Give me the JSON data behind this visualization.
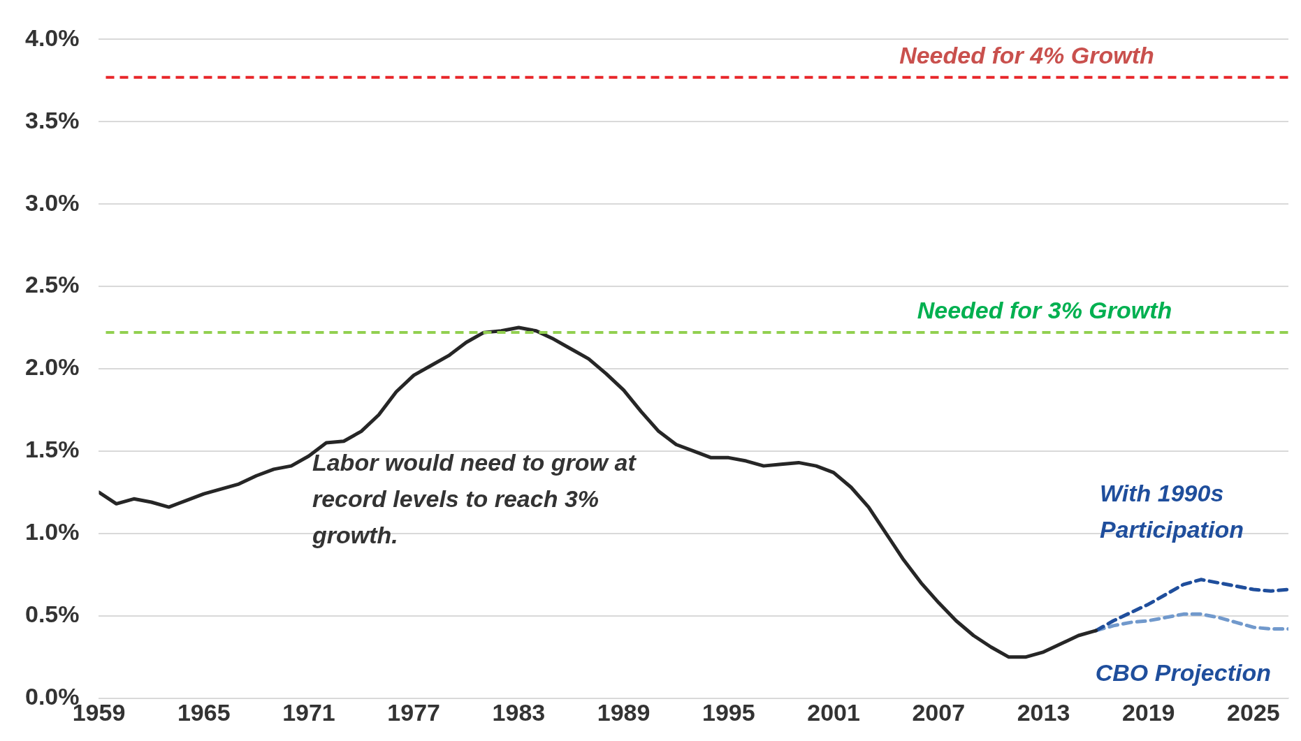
{
  "chart_data": {
    "type": "line",
    "x": [
      1959,
      1960,
      1961,
      1962,
      1963,
      1964,
      1965,
      1966,
      1967,
      1968,
      1969,
      1970,
      1971,
      1972,
      1973,
      1974,
      1975,
      1976,
      1977,
      1978,
      1979,
      1980,
      1981,
      1982,
      1983,
      1984,
      1985,
      1986,
      1987,
      1988,
      1989,
      1990,
      1991,
      1992,
      1993,
      1994,
      1995,
      1996,
      1997,
      1998,
      1999,
      2000,
      2001,
      2002,
      2003,
      2004,
      2005,
      2006,
      2007,
      2008,
      2009,
      2010,
      2011,
      2012,
      2013,
      2014,
      2015,
      2016
    ],
    "series": [
      {
        "color": "#262626",
        "line_style": "solid",
        "values": [
          1.25,
          1.18,
          1.21,
          1.19,
          1.16,
          1.2,
          1.24,
          1.27,
          1.3,
          1.35,
          1.39,
          1.41,
          1.47,
          1.55,
          1.56,
          1.62,
          1.72,
          1.86,
          1.96,
          2.02,
          2.08,
          2.16,
          2.22,
          2.23,
          2.25,
          2.23,
          2.18,
          2.12,
          2.06,
          1.97,
          1.87,
          1.74,
          1.62,
          1.54,
          1.5,
          1.46,
          1.46,
          1.44,
          1.41,
          1.42,
          1.43,
          1.41,
          1.37,
          1.28,
          1.16,
          1.0,
          0.84,
          0.7,
          0.58,
          0.47,
          0.38,
          0.31,
          0.25,
          0.25,
          0.28,
          0.33,
          0.38,
          0.41
        ]
      },
      {
        "name": "With 1990s Participation",
        "color": "#1f4e9c",
        "line_style": "dashed",
        "x": [
          2016,
          2017,
          2018,
          2019,
          2020,
          2021,
          2022,
          2023,
          2024,
          2025,
          2026,
          2027
        ],
        "values": [
          0.41,
          0.47,
          0.52,
          0.57,
          0.63,
          0.69,
          0.72,
          0.7,
          0.68,
          0.66,
          0.65,
          0.66
        ]
      },
      {
        "name": "CBO Projection",
        "color": "#7199cc",
        "line_style": "dashed",
        "x": [
          2016,
          2017,
          2018,
          2019,
          2020,
          2021,
          2022,
          2023,
          2024,
          2025,
          2026,
          2027
        ],
        "values": [
          0.41,
          0.44,
          0.46,
          0.47,
          0.49,
          0.51,
          0.51,
          0.49,
          0.46,
          0.43,
          0.42,
          0.42
        ]
      }
    ],
    "xlim": [
      1959,
      2027
    ],
    "xticks": [
      1959,
      1965,
      1971,
      1977,
      1983,
      1989,
      1995,
      2001,
      2007,
      2013,
      2019,
      2025
    ],
    "ylim": [
      0,
      4
    ],
    "yticks": [
      {
        "value": 0,
        "label": "0.0%"
      },
      {
        "value": 0.5,
        "label": "0.5%"
      },
      {
        "value": 1,
        "label": "1.0%"
      },
      {
        "value": 1.5,
        "label": "1.5%"
      },
      {
        "value": 2,
        "label": "2.0%"
      },
      {
        "value": 2.5,
        "label": "2.5%"
      },
      {
        "value": 3,
        "label": "3.0%"
      },
      {
        "value": 3.5,
        "label": "3.5%"
      },
      {
        "value": 4,
        "label": "4.0%"
      }
    ],
    "grid": "y",
    "legend": false,
    "marker": "none",
    "ref_lines": [
      {
        "axis": "y",
        "value": 3.77,
        "label": "Needed for 4% Growth",
        "color": "#e8262a",
        "line_style": "dashed"
      },
      {
        "axis": "y",
        "value": 2.22,
        "label": "Needed for 3% Growth",
        "color": "#92d050",
        "line_style": "dashed"
      }
    ],
    "annotations": [
      "Labor would need to grow at record levels to reach 3% growth."
    ]
  }
}
